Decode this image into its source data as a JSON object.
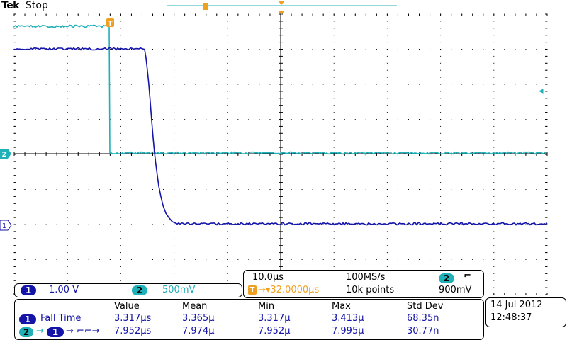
{
  "header": {
    "brand": "Tek",
    "run_state": "Stop"
  },
  "markers": {
    "trigger_label": "T",
    "ch1_marker": "1",
    "ch2_marker": "2",
    "ch2_level_arrow": "◂"
  },
  "channels": {
    "ch1": {
      "label": "1",
      "scale": "1.00 V",
      "color": "#1414a8"
    },
    "ch2": {
      "label": "2",
      "scale": "500mV",
      "color": "#20b0b8"
    }
  },
  "acquisition": {
    "timebase": "10.0µs",
    "sample_rate": "100MS/s",
    "trigger_channel": "2",
    "trigger_slope_icon": "falling-edge-icon",
    "trigger_slope_glyph": "⌐",
    "trigger_position_prefix": "T",
    "trigger_position": "→▾32.0000µs",
    "record_length": "10k points",
    "trigger_level": "900mV"
  },
  "measurements": {
    "headers": [
      "Value",
      "Mean",
      "Min",
      "Max",
      "Std Dev"
    ],
    "rows": [
      {
        "source": "1",
        "name": "Fall Time",
        "cells": [
          "3.317µs",
          "3.365µ",
          "3.317µ",
          "3.413µ",
          "68.35n"
        ]
      },
      {
        "source_from": "2",
        "source_to": "1",
        "name": "→ ⌐⌐→",
        "cells": [
          "7.952µs",
          "7.974µ",
          "7.952µ",
          "7.995µ",
          "30.77n"
        ]
      }
    ]
  },
  "datetime": {
    "date": "14 Jul  2012",
    "time": "12:48:37"
  },
  "colors": {
    "ch1": "#1414a8",
    "ch2": "#20b0b8",
    "trigger": "#f0a020",
    "graticule": "#000000"
  }
}
